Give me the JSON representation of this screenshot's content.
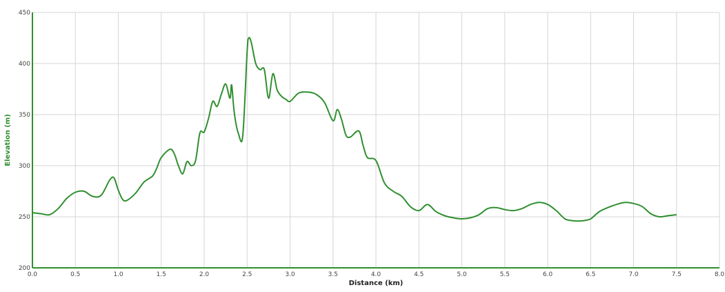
{
  "chart_data": {
    "type": "line",
    "title": "",
    "xlabel": "Distance (km)",
    "ylabel": "Elevation (m)",
    "xlim": [
      0,
      8
    ],
    "ylim": [
      200,
      450
    ],
    "xticks": [
      "0.0",
      "0.5",
      "1.0",
      "1.5",
      "2.0",
      "2.5",
      "3.0",
      "3.5",
      "4.0",
      "4.5",
      "5.0",
      "5.5",
      "6.0",
      "6.5",
      "7.0",
      "7.5",
      "8.0"
    ],
    "yticks": [
      "200",
      "250",
      "300",
      "350",
      "400",
      "450"
    ],
    "grid": true,
    "colors": {
      "line": "#2f8f2f",
      "axis": "#2f8f2f",
      "grid": "#d6d6d6",
      "axis_label": "#2f8f2f"
    },
    "series": [
      {
        "x": [
          0.0,
          0.1,
          0.2,
          0.3,
          0.4,
          0.5,
          0.6,
          0.7,
          0.8,
          0.9,
          0.95,
          1.0,
          1.05,
          1.1,
          1.2,
          1.3,
          1.4,
          1.45,
          1.5,
          1.6,
          1.65,
          1.7,
          1.75,
          1.8,
          1.85,
          1.9,
          1.95,
          2.0,
          2.05,
          2.1,
          2.15,
          2.2,
          2.25,
          2.3,
          2.32,
          2.35,
          2.4,
          2.45,
          2.5,
          2.52,
          2.55,
          2.6,
          2.65,
          2.7,
          2.75,
          2.8,
          2.85,
          2.9,
          2.95,
          3.0,
          3.1,
          3.2,
          3.3,
          3.4,
          3.5,
          3.55,
          3.6,
          3.65,
          3.7,
          3.8,
          3.85,
          3.9,
          4.0,
          4.1,
          4.2,
          4.3,
          4.4,
          4.5,
          4.6,
          4.7,
          4.8,
          4.9,
          5.0,
          5.1,
          5.2,
          5.3,
          5.4,
          5.5,
          5.6,
          5.7,
          5.8,
          5.9,
          6.0,
          6.1,
          6.2,
          6.3,
          6.4,
          6.5,
          6.6,
          6.7,
          6.8,
          6.9,
          7.0,
          7.1,
          7.2,
          7.3,
          7.4,
          7.5
        ],
        "y": [
          254,
          253,
          252,
          258,
          268,
          274,
          275,
          270,
          271,
          286,
          288,
          276,
          267,
          266,
          273,
          284,
          290,
          298,
          308,
          316,
          312,
          300,
          292,
          304,
          300,
          305,
          332,
          333,
          346,
          363,
          358,
          370,
          380,
          366,
          379,
          352,
          331,
          330,
          412,
          425,
          420,
          400,
          394,
          394,
          366,
          390,
          374,
          368,
          365,
          363,
          371,
          372,
          370,
          362,
          344,
          355,
          345,
          330,
          328,
          334,
          320,
          308,
          305,
          283,
          275,
          270,
          260,
          256,
          262,
          255,
          251,
          249,
          248,
          249,
          252,
          258,
          259,
          257,
          256,
          258,
          262,
          264,
          262,
          256,
          248,
          246,
          246,
          248,
          255,
          259,
          262,
          264,
          263,
          260,
          253,
          250,
          251,
          252
        ]
      }
    ]
  }
}
